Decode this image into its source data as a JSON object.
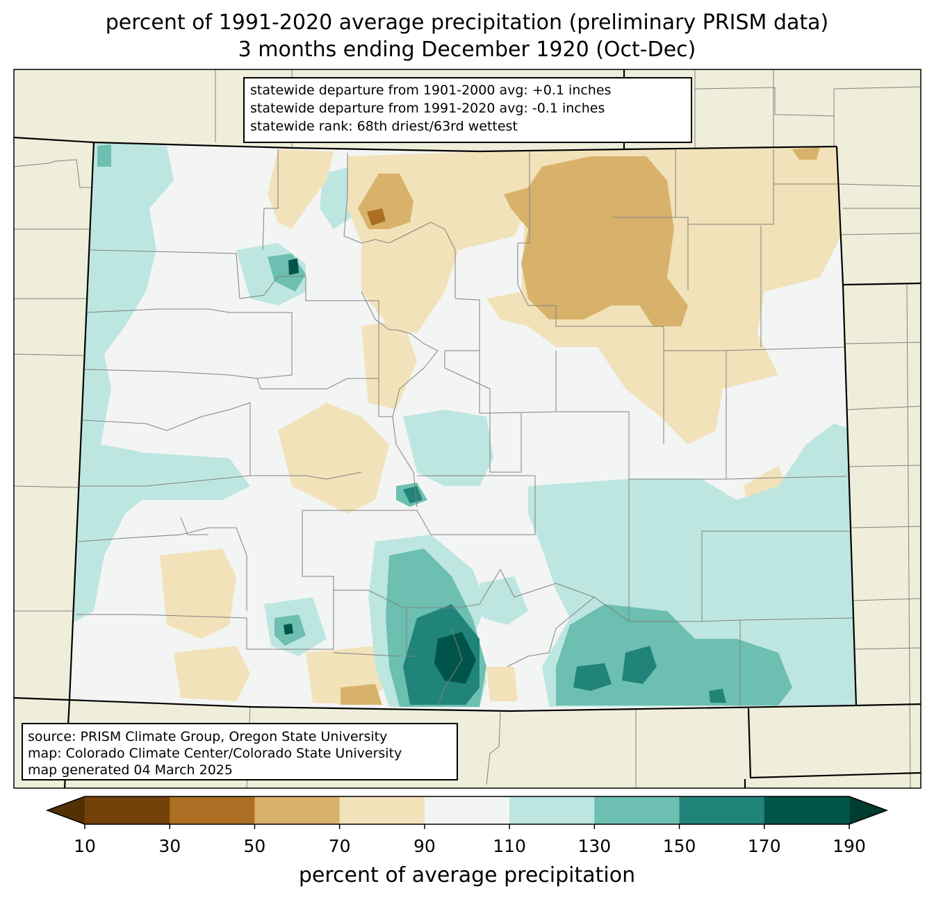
{
  "title": {
    "line1": "percent of 1991-2020 average precipitation (preliminary PRISM data)",
    "line2": "3 months ending December 1920 (Oct-Dec)"
  },
  "stats": {
    "line1": "statewide departure from 1901-2000 avg: +0.1 inches",
    "line2": "statewide departure from 1991-2020 avg: -0.1 inches",
    "line3": "statewide rank: 68th driest/63rd wettest"
  },
  "credits": {
    "source": "source: PRISM Climate Group, Oregon State University",
    "map": "map: Colorado Climate Center/Colorado State University",
    "generated": "map generated 04 March 2025"
  },
  "colorbar": {
    "label": "percent of average precipitation",
    "ticks": [
      "10",
      "30",
      "50",
      "70",
      "90",
      "110",
      "130",
      "150",
      "170",
      "190"
    ],
    "colors": [
      "#543005",
      "#724009",
      "#ab6e22",
      "#d8b26b",
      "#f2e2b9",
      "#f3f5f4",
      "#bde6e0",
      "#6cbfb1",
      "#218479",
      "#01544a",
      "#003c30"
    ]
  },
  "colors": {
    "land_outside": "#efeedb",
    "state_border": "#000000",
    "county_border": "#808080"
  }
}
